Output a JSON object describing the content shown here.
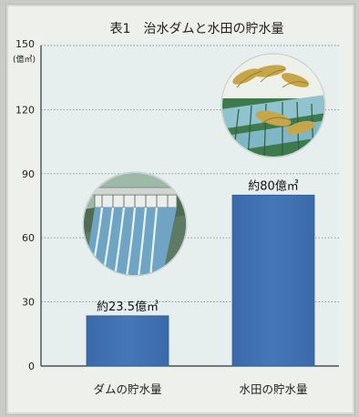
{
  "chart_data": {
    "type": "bar",
    "title": "表1　治水ダムと水田の貯水量",
    "y_unit": "(億㎥)",
    "categories": [
      "ダムの貯水量",
      "水田の貯水量"
    ],
    "values": [
      23.5,
      80
    ],
    "data_labels": [
      "約23.5億㎥",
      "約80億㎥"
    ],
    "yticks": [
      "150",
      "120",
      "90",
      "60",
      "30",
      "0"
    ],
    "ylim": [
      0,
      150
    ],
    "grid": true,
    "bar_color": "#3f72b3",
    "illustrations": [
      "dam-illustration",
      "rice-paddy-illustration"
    ]
  }
}
